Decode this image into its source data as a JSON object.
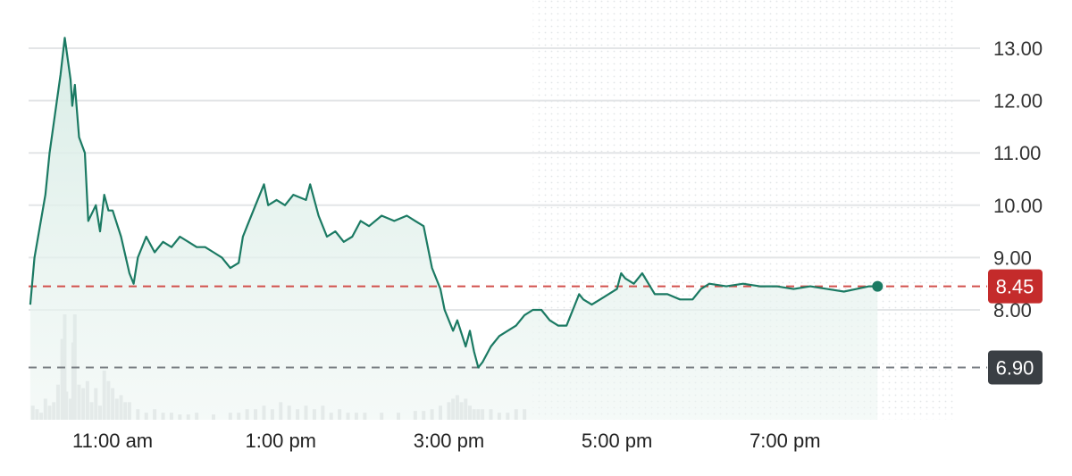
{
  "chart_data": {
    "type": "line",
    "y_ticks": [
      "13.00",
      "12.00",
      "11.00",
      "10.00",
      "9.00",
      "8.00"
    ],
    "ylim": [
      6.0,
      13.5
    ],
    "x_ticks": [
      {
        "label": "11:00 am",
        "hour": 11
      },
      {
        "label": "1:00 pm",
        "hour": 13
      },
      {
        "label": "3:00 pm",
        "hour": 15
      },
      {
        "label": "5:00 pm",
        "hour": 17
      },
      {
        "label": "7:00 pm",
        "hour": 19
      }
    ],
    "xlim": [
      10.0,
      21.0
    ],
    "regular_session_end_hour": 16.0,
    "last_price": {
      "value": 8.45,
      "label": "8.45",
      "color": "#c42b2b"
    },
    "reference_price": {
      "value": 6.9,
      "label": "6.90",
      "color": "#3a3f44"
    },
    "line_color": "#1b7a63",
    "fill_color": "#dcefe8",
    "series": [
      {
        "values": [
          [
            10.02,
            8.1
          ],
          [
            10.07,
            9.0
          ],
          [
            10.2,
            10.2
          ],
          [
            10.25,
            11.0
          ],
          [
            10.38,
            12.5
          ],
          [
            10.43,
            13.2
          ],
          [
            10.5,
            12.4
          ],
          [
            10.52,
            11.9
          ],
          [
            10.55,
            12.3
          ],
          [
            10.6,
            11.3
          ],
          [
            10.67,
            11.0
          ],
          [
            10.71,
            9.7
          ],
          [
            10.8,
            10.0
          ],
          [
            10.85,
            9.5
          ],
          [
            10.9,
            10.2
          ],
          [
            10.95,
            9.9
          ],
          [
            11.0,
            9.9
          ],
          [
            11.1,
            9.4
          ],
          [
            11.2,
            8.7
          ],
          [
            11.25,
            8.5
          ],
          [
            11.3,
            9.0
          ],
          [
            11.4,
            9.4
          ],
          [
            11.5,
            9.1
          ],
          [
            11.6,
            9.3
          ],
          [
            11.7,
            9.2
          ],
          [
            11.8,
            9.4
          ],
          [
            11.9,
            9.3
          ],
          [
            12.0,
            9.2
          ],
          [
            12.1,
            9.2
          ],
          [
            12.2,
            9.1
          ],
          [
            12.3,
            9.0
          ],
          [
            12.4,
            8.8
          ],
          [
            12.5,
            8.9
          ],
          [
            12.55,
            9.4
          ],
          [
            12.6,
            9.6
          ],
          [
            12.7,
            10.0
          ],
          [
            12.8,
            10.4
          ],
          [
            12.85,
            10.0
          ],
          [
            12.95,
            10.1
          ],
          [
            13.05,
            10.0
          ],
          [
            13.15,
            10.2
          ],
          [
            13.3,
            10.1
          ],
          [
            13.35,
            10.4
          ],
          [
            13.45,
            9.8
          ],
          [
            13.55,
            9.4
          ],
          [
            13.65,
            9.5
          ],
          [
            13.75,
            9.3
          ],
          [
            13.85,
            9.4
          ],
          [
            13.95,
            9.7
          ],
          [
            14.05,
            9.6
          ],
          [
            14.2,
            9.8
          ],
          [
            14.35,
            9.7
          ],
          [
            14.5,
            9.8
          ],
          [
            14.6,
            9.7
          ],
          [
            14.7,
            9.6
          ],
          [
            14.75,
            9.2
          ],
          [
            14.8,
            8.8
          ],
          [
            14.9,
            8.4
          ],
          [
            14.95,
            8.0
          ],
          [
            15.05,
            7.6
          ],
          [
            15.1,
            7.8
          ],
          [
            15.2,
            7.3
          ],
          [
            15.25,
            7.6
          ],
          [
            15.3,
            7.2
          ],
          [
            15.35,
            6.9
          ],
          [
            15.4,
            7.0
          ],
          [
            15.5,
            7.3
          ],
          [
            15.6,
            7.5
          ],
          [
            15.7,
            7.6
          ],
          [
            15.8,
            7.7
          ],
          [
            15.9,
            7.9
          ],
          [
            16.0,
            8.0
          ],
          [
            16.1,
            8.0
          ],
          [
            16.2,
            7.8
          ],
          [
            16.3,
            7.7
          ],
          [
            16.4,
            7.7
          ],
          [
            16.5,
            8.1
          ],
          [
            16.55,
            8.3
          ],
          [
            16.6,
            8.2
          ],
          [
            16.7,
            8.1
          ],
          [
            16.8,
            8.2
          ],
          [
            16.9,
            8.3
          ],
          [
            17.0,
            8.4
          ],
          [
            17.05,
            8.7
          ],
          [
            17.1,
            8.6
          ],
          [
            17.2,
            8.5
          ],
          [
            17.3,
            8.7
          ],
          [
            17.45,
            8.3
          ],
          [
            17.6,
            8.3
          ],
          [
            17.75,
            8.2
          ],
          [
            17.9,
            8.2
          ],
          [
            18.0,
            8.4
          ],
          [
            18.1,
            8.5
          ],
          [
            18.3,
            8.45
          ],
          [
            18.5,
            8.5
          ],
          [
            18.7,
            8.45
          ],
          [
            18.9,
            8.45
          ],
          [
            19.1,
            8.4
          ],
          [
            19.3,
            8.45
          ],
          [
            19.5,
            8.4
          ],
          [
            19.7,
            8.35
          ],
          [
            19.85,
            8.4
          ],
          [
            20.0,
            8.45
          ],
          [
            20.1,
            8.45
          ]
        ]
      }
    ],
    "volume": {
      "color": "#d5d8da",
      "hours": [
        10.05,
        10.1,
        10.15,
        10.2,
        10.25,
        10.3,
        10.35,
        10.4,
        10.43,
        10.45,
        10.5,
        10.53,
        10.55,
        10.6,
        10.65,
        10.7,
        10.75,
        10.8,
        10.85,
        10.9,
        10.95,
        11.0,
        11.05,
        11.1,
        11.15,
        11.2,
        11.3,
        11.4,
        11.5,
        11.6,
        11.7,
        11.8,
        11.9,
        12.0,
        12.2,
        12.4,
        12.5,
        12.6,
        12.7,
        12.8,
        12.9,
        13.0,
        13.1,
        13.2,
        13.3,
        13.4,
        13.5,
        13.6,
        13.7,
        13.8,
        13.9,
        14.0,
        14.2,
        14.4,
        14.6,
        14.7,
        14.8,
        14.9,
        15.0,
        15.05,
        15.1,
        15.15,
        15.2,
        15.25,
        15.3,
        15.35,
        15.4,
        15.5,
        15.6,
        15.7,
        15.8,
        15.9
      ],
      "values": [
        0.4,
        0.3,
        0.2,
        0.6,
        0.4,
        0.5,
        1.0,
        2.3,
        3.0,
        0.8,
        0.6,
        2.2,
        3.0,
        1.0,
        0.9,
        1.1,
        0.5,
        0.9,
        0.4,
        1.4,
        1.1,
        0.9,
        0.6,
        0.7,
        0.5,
        0.5,
        0.3,
        0.2,
        0.3,
        0.2,
        0.2,
        0.15,
        0.15,
        0.2,
        0.15,
        0.2,
        0.2,
        0.3,
        0.3,
        0.4,
        0.3,
        0.5,
        0.4,
        0.3,
        0.4,
        0.3,
        0.4,
        0.2,
        0.3,
        0.2,
        0.2,
        0.2,
        0.2,
        0.2,
        0.25,
        0.25,
        0.3,
        0.4,
        0.5,
        0.6,
        0.7,
        0.5,
        0.6,
        0.4,
        0.3,
        0.3,
        0.3,
        0.3,
        0.2,
        0.2,
        0.3,
        0.3
      ]
    }
  }
}
